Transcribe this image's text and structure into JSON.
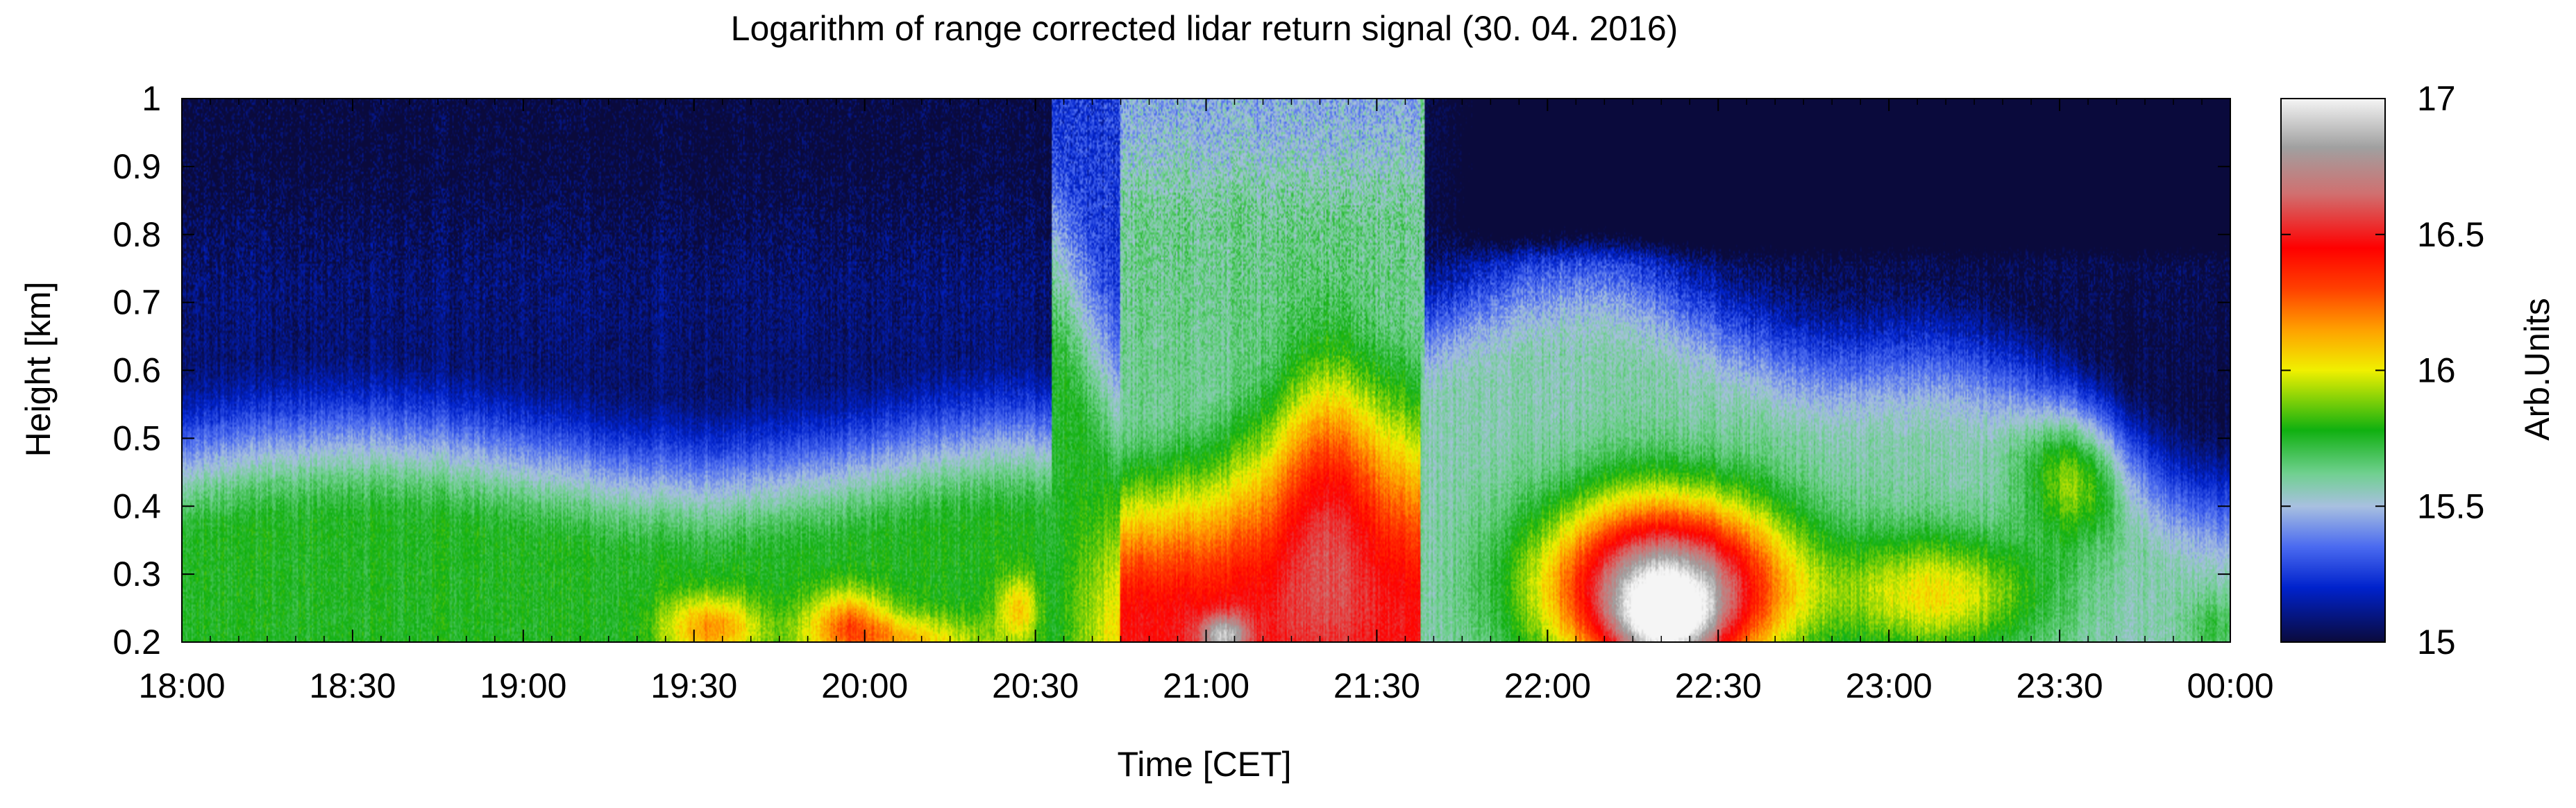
{
  "chart_data": {
    "type": "heatmap",
    "title": "Logarithm of range corrected lidar return signal (30. 04. 2016)",
    "xlabel": "Time [CET]",
    "ylabel": "Height [km]",
    "x_ticks": [
      "18:00",
      "18:30",
      "19:00",
      "19:30",
      "20:00",
      "20:30",
      "21:00",
      "21:30",
      "22:00",
      "22:30",
      "23:00",
      "23:30",
      "00:00"
    ],
    "y_ticks": [
      "0.2",
      "0.3",
      "0.4",
      "0.5",
      "0.6",
      "0.7",
      "0.8",
      "0.9",
      "1"
    ],
    "xlim": [
      "18:00",
      "00:00"
    ],
    "ylim": [
      0.2,
      1.0
    ],
    "colorbar": {
      "label": "Arb.Units",
      "range": [
        15,
        17
      ],
      "ticks": [
        "15",
        "15.5",
        "16",
        "16.5",
        "17"
      ],
      "colormap": [
        {
          "v": 15.0,
          "color": "#0a0a3c"
        },
        {
          "v": 15.2,
          "color": "#0022cc"
        },
        {
          "v": 15.35,
          "color": "#4a6af0"
        },
        {
          "v": 15.5,
          "color": "#a8c0e0"
        },
        {
          "v": 15.62,
          "color": "#70d090"
        },
        {
          "v": 15.78,
          "color": "#10b010"
        },
        {
          "v": 16.0,
          "color": "#f0f000"
        },
        {
          "v": 16.15,
          "color": "#ffa000"
        },
        {
          "v": 16.3,
          "color": "#ff4000"
        },
        {
          "v": 16.45,
          "color": "#ff0000"
        },
        {
          "v": 16.65,
          "color": "#d07070"
        },
        {
          "v": 16.82,
          "color": "#a0a0a0"
        },
        {
          "v": 17.0,
          "color": "#f5f5f5"
        }
      ]
    },
    "features": [
      {
        "region": "upper layer 18:00-20:20",
        "height_km": [
          0.65,
          1.0
        ],
        "approx_value": 15.1
      },
      {
        "region": "boundary layer 18:00-20:30",
        "height_km": [
          0.2,
          0.45
        ],
        "approx_value": 15.7
      },
      {
        "region": "aerosol layer 20:40-21:35",
        "height_km": [
          0.2,
          0.65
        ],
        "approx_value": 16.4
      },
      {
        "region": "peak near 22:10-22:30",
        "height_km": [
          0.2,
          0.35
        ],
        "approx_value": 16.9
      },
      {
        "region": "clear sky above 21:38",
        "height_km": [
          0.75,
          1.0
        ],
        "approx_value": 15.0
      }
    ]
  }
}
